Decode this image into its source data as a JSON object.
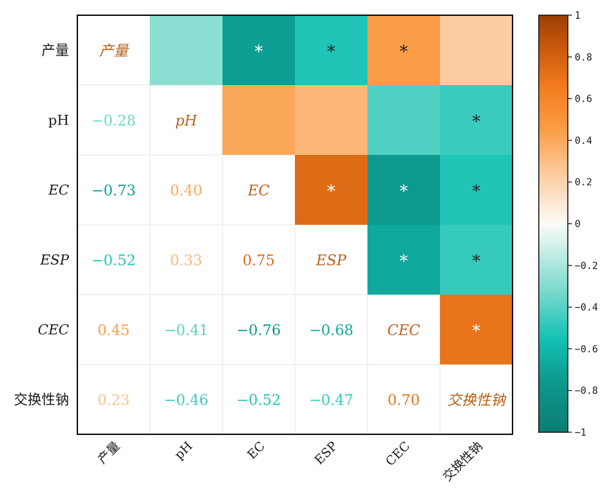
{
  "chart_data": {
    "type": "heatmap",
    "variables": [
      {
        "label": "产量",
        "italic": false
      },
      {
        "label": "pH",
        "italic": false
      },
      {
        "label": "EC",
        "italic": true
      },
      {
        "label": "ESP",
        "italic": true
      },
      {
        "label": "CEC",
        "italic": true
      },
      {
        "label": "交换性钠",
        "italic": false
      }
    ],
    "x_tick_labels": [
      "产量",
      "pH",
      "EC",
      "ESP",
      "CEC",
      "交换性钠"
    ],
    "y_tick_labels": [
      "产量",
      "pH",
      "EC",
      "ESP",
      "CEC",
      "交换性钠"
    ],
    "lower_triangle": [
      {
        "row": 1,
        "col": 0,
        "text": "−0.28",
        "value": -0.28
      },
      {
        "row": 2,
        "col": 0,
        "text": "−0.73",
        "value": -0.73
      },
      {
        "row": 2,
        "col": 1,
        "text": "0.40",
        "value": 0.4
      },
      {
        "row": 3,
        "col": 0,
        "text": "−0.52",
        "value": -0.52
      },
      {
        "row": 3,
        "col": 1,
        "text": "0.33",
        "value": 0.33
      },
      {
        "row": 3,
        "col": 2,
        "text": "0.75",
        "value": 0.75
      },
      {
        "row": 4,
        "col": 0,
        "text": "0.45",
        "value": 0.45
      },
      {
        "row": 4,
        "col": 1,
        "text": "−0.41",
        "value": -0.41
      },
      {
        "row": 4,
        "col": 2,
        "text": "−0.76",
        "value": -0.76
      },
      {
        "row": 4,
        "col": 3,
        "text": "−0.68",
        "value": -0.68
      },
      {
        "row": 5,
        "col": 0,
        "text": "0.23",
        "value": 0.23
      },
      {
        "row": 5,
        "col": 1,
        "text": "−0.46",
        "value": -0.46
      },
      {
        "row": 5,
        "col": 2,
        "text": "−0.52",
        "value": -0.52
      },
      {
        "row": 5,
        "col": 3,
        "text": "−0.47",
        "value": -0.47
      },
      {
        "row": 5,
        "col": 4,
        "text": "0.70",
        "value": 0.7
      }
    ],
    "upper_triangle": [
      {
        "row": 0,
        "col": 1,
        "value": -0.28,
        "sig": false
      },
      {
        "row": 0,
        "col": 2,
        "value": -0.73,
        "sig": true
      },
      {
        "row": 0,
        "col": 3,
        "value": -0.52,
        "sig": true
      },
      {
        "row": 0,
        "col": 4,
        "value": 0.45,
        "sig": true
      },
      {
        "row": 0,
        "col": 5,
        "value": 0.23,
        "sig": false
      },
      {
        "row": 1,
        "col": 2,
        "value": 0.4,
        "sig": false
      },
      {
        "row": 1,
        "col": 3,
        "value": 0.33,
        "sig": false
      },
      {
        "row": 1,
        "col": 4,
        "value": -0.41,
        "sig": false
      },
      {
        "row": 1,
        "col": 5,
        "value": -0.46,
        "sig": true
      },
      {
        "row": 2,
        "col": 3,
        "value": 0.75,
        "sig": true
      },
      {
        "row": 2,
        "col": 4,
        "value": -0.76,
        "sig": true
      },
      {
        "row": 2,
        "col": 5,
        "value": -0.52,
        "sig": true
      },
      {
        "row": 3,
        "col": 4,
        "value": -0.68,
        "sig": true
      },
      {
        "row": 3,
        "col": 5,
        "value": -0.47,
        "sig": true
      },
      {
        "row": 4,
        "col": 5,
        "value": 0.7,
        "sig": true
      }
    ],
    "significance_marker": "*",
    "colorbar": {
      "range": [
        -1,
        1
      ],
      "ticks": [
        {
          "value": 1,
          "label": "1"
        },
        {
          "value": 0.8,
          "label": "0.8"
        },
        {
          "value": 0.6,
          "label": "0.6"
        },
        {
          "value": 0.4,
          "label": "0.4"
        },
        {
          "value": 0.2,
          "label": "0.2"
        },
        {
          "value": 0,
          "label": "0"
        },
        {
          "value": -0.2,
          "label": "−0.2"
        },
        {
          "value": -0.4,
          "label": "−0.4"
        },
        {
          "value": -0.6,
          "label": "−0.6"
        },
        {
          "value": -0.8,
          "label": "−0.8"
        },
        {
          "value": -1,
          "label": "−1"
        }
      ],
      "colors": [
        {
          "value": -1,
          "color": "#0b7d72"
        },
        {
          "value": -0.75,
          "color": "#0e9a8f"
        },
        {
          "value": -0.55,
          "color": "#12c2b5"
        },
        {
          "value": -0.3,
          "color": "#83dccf"
        },
        {
          "value": 0,
          "color": "#fbfbf7"
        },
        {
          "value": 0.25,
          "color": "#fdc99a"
        },
        {
          "value": 0.45,
          "color": "#fb9d46"
        },
        {
          "value": 0.65,
          "color": "#f47d1e"
        },
        {
          "value": 0.85,
          "color": "#c8580b"
        },
        {
          "value": 1,
          "color": "#9b3f05"
        }
      ]
    },
    "grid": true
  }
}
